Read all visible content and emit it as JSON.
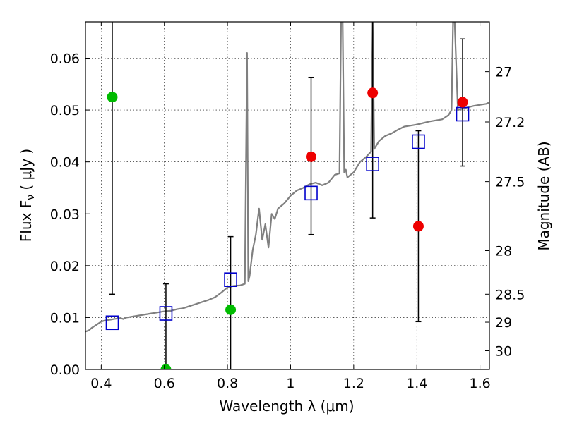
{
  "chart_data": {
    "type": "scatter",
    "xlabel": "Wavelength  λ (μm)",
    "ylabel_left": "Flux  F",
    "ylabel_left_sub": "ν",
    "ylabel_left_unit": "  ( μJy )",
    "ylabel_right": "Magnitude (AB)",
    "xlim": [
      0.35,
      1.63
    ],
    "ylim": [
      0.0,
      0.067
    ],
    "grid": true,
    "x_ticks": [
      0.4,
      0.6,
      0.8,
      1.0,
      1.2,
      1.4,
      1.6
    ],
    "x_tick_labels": [
      "0.4",
      "0.6",
      "0.8",
      "1",
      "1.2",
      "1.4",
      "1.6"
    ],
    "y_ticks": [
      0.0,
      0.01,
      0.02,
      0.03,
      0.04,
      0.05,
      0.06
    ],
    "y_tick_labels": [
      "0.00",
      "0.01",
      "0.02",
      "0.03",
      "0.04",
      "0.05",
      "0.06"
    ],
    "right_ticks": [
      {
        "label": "27",
        "flux": 0.0574
      },
      {
        "label": "27.2",
        "flux": 0.0477
      },
      {
        "label": "27.5",
        "flux": 0.0362
      },
      {
        "label": "28",
        "flux": 0.0229
      },
      {
        "label": "28.5",
        "flux": 0.0145
      },
      {
        "label": "29",
        "flux": 0.0091
      },
      {
        "label": "30",
        "flux": 0.0036
      }
    ],
    "series": [
      {
        "kind": "sed-model",
        "color": "#808080",
        "x": [
          0.35,
          0.36,
          0.37,
          0.38,
          0.39,
          0.4,
          0.41,
          0.42,
          0.43,
          0.44,
          0.45,
          0.46,
          0.47,
          0.48,
          0.49,
          0.5,
          0.52,
          0.54,
          0.56,
          0.58,
          0.6,
          0.62,
          0.64,
          0.66,
          0.68,
          0.7,
          0.72,
          0.74,
          0.76,
          0.78,
          0.8,
          0.82,
          0.84,
          0.855,
          0.862,
          0.866,
          0.87,
          0.88,
          0.89,
          0.9,
          0.91,
          0.92,
          0.93,
          0.94,
          0.95,
          0.96,
          0.98,
          1.0,
          1.02,
          1.04,
          1.06,
          1.08,
          1.1,
          1.12,
          1.14,
          1.155,
          1.16,
          1.165,
          1.17,
          1.175,
          1.18,
          1.2,
          1.22,
          1.24,
          1.255,
          1.26,
          1.265,
          1.28,
          1.3,
          1.32,
          1.34,
          1.36,
          1.38,
          1.4,
          1.42,
          1.44,
          1.46,
          1.48,
          1.5,
          1.51,
          1.515,
          1.52,
          1.53,
          1.54,
          1.56,
          1.58,
          1.6,
          1.62,
          1.63
        ],
        "y": [
          0.0073,
          0.0075,
          0.008,
          0.0084,
          0.0088,
          0.0092,
          0.0094,
          0.0095,
          0.0096,
          0.0097,
          0.0098,
          0.0099,
          0.0097,
          0.01,
          0.0101,
          0.0102,
          0.0104,
          0.0106,
          0.0108,
          0.011,
          0.0112,
          0.0113,
          0.0116,
          0.0118,
          0.0122,
          0.0126,
          0.013,
          0.0134,
          0.0139,
          0.0148,
          0.0158,
          0.0161,
          0.0162,
          0.0165,
          0.061,
          0.017,
          0.018,
          0.023,
          0.026,
          0.031,
          0.025,
          0.028,
          0.0235,
          0.03,
          0.029,
          0.031,
          0.032,
          0.0335,
          0.0345,
          0.035,
          0.0357,
          0.036,
          0.0355,
          0.036,
          0.0375,
          0.0378,
          0.068,
          0.067,
          0.038,
          0.0385,
          0.037,
          0.038,
          0.04,
          0.041,
          0.042,
          0.067,
          0.0425,
          0.044,
          0.045,
          0.0455,
          0.0462,
          0.0468,
          0.047,
          0.0472,
          0.0475,
          0.0478,
          0.048,
          0.0482,
          0.049,
          0.05,
          0.068,
          0.067,
          0.05,
          0.0502,
          0.0505,
          0.0508,
          0.051,
          0.0512,
          0.0515
        ]
      },
      {
        "kind": "model-photometry",
        "marker": "open-square",
        "color": "#0000cc",
        "x": [
          0.435,
          0.605,
          0.81,
          1.065,
          1.26,
          1.405,
          1.545
        ],
        "y": [
          0.009,
          0.0108,
          0.0173,
          0.034,
          0.0396,
          0.0439,
          0.0492
        ]
      },
      {
        "kind": "observed-detections",
        "marker": "filled-circle",
        "color": "#ee0000",
        "x": [
          1.065,
          1.26,
          1.405,
          1.545
        ],
        "y": [
          0.041,
          0.0533,
          0.0276,
          0.0515
        ],
        "yerr_low": [
          0.026,
          0.0292,
          0.0092,
          0.0392
        ],
        "yerr_high": [
          0.0563,
          0.07,
          0.046,
          0.0637
        ]
      },
      {
        "kind": "observed-upper",
        "marker": "filled-circle",
        "color": "#00bb00",
        "x": [
          0.435,
          0.605,
          0.81
        ],
        "y": [
          0.0525,
          0.0,
          0.0115
        ],
        "yerr_low": [
          0.0145,
          0.0,
          0.0
        ],
        "yerr_high": [
          0.07,
          0.0165,
          0.0256
        ]
      }
    ]
  }
}
